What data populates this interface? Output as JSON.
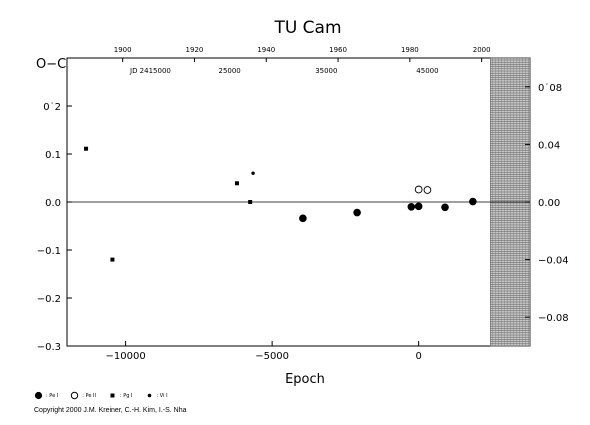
{
  "chart_data": {
    "type": "scatter",
    "title": "TU Cam",
    "ylabel": "O−C",
    "xlabel": "Epoch",
    "xlim": [
      -12000,
      3800
    ],
    "ylim": [
      -0.3,
      0.3
    ],
    "x_ticks": [
      -10000,
      -5000,
      0
    ],
    "x_tick_labels": [
      "−10000",
      "−5000",
      "0"
    ],
    "y_ticks": [
      -0.3,
      -0.2,
      -0.1,
      0.0,
      0.1,
      0.2
    ],
    "y_tick_labels": [
      "−0.3",
      "−0.2",
      "−0.1",
      "0.0",
      "0.1",
      "0˙2"
    ],
    "right_ticks": [
      -0.08,
      -0.04,
      0.0,
      0.04,
      0.08
    ],
    "right_tick_labels": [
      "−0.08",
      "−0.04",
      "0.00",
      "0.04",
      "0˙08"
    ],
    "year_ticks": [
      1900,
      1920,
      1940,
      1960,
      1980,
      2000
    ],
    "year_tick_epochs": [
      -10100,
      -7650,
      -5200,
      -2750,
      -300,
      2150
    ],
    "jd_label": "JD 2415000",
    "jd_ticks": [
      "25000",
      "35000",
      "45000"
    ],
    "jd_tick_epochs": [
      -6450,
      -3150,
      300
    ],
    "jd_label_epoch": -9850,
    "shaded_region": [
      2450,
      3800
    ],
    "series": [
      {
        "name": "Pe I",
        "marker": "filled-circle-large",
        "x": [
          -3950,
          -2100,
          -250,
          0,
          900,
          1850
        ],
        "y": [
          -0.034,
          -0.022,
          -0.01,
          -0.009,
          -0.011,
          0.001
        ]
      },
      {
        "name": "Pe II",
        "marker": "open-circle",
        "x": [
          0,
          300
        ],
        "y": [
          0.026,
          0.025
        ]
      },
      {
        "name": "Pg I",
        "marker": "filled-square",
        "x": [
          -11350,
          -10450,
          -6200,
          -5750
        ],
        "y": [
          0.111,
          -0.12,
          0.039,
          0.0
        ]
      },
      {
        "name": "Vi I",
        "marker": "filled-circle-small",
        "x": [
          -5650
        ],
        "y": [
          0.06
        ]
      }
    ]
  },
  "legend": [
    {
      "label": ": Pe I",
      "marker": "filled-circle-large"
    },
    {
      "label": ": Pe II",
      "marker": "open-circle"
    },
    {
      "label": ": Pg I",
      "marker": "filled-square"
    },
    {
      "label": ": Vi I",
      "marker": "filled-circle-small"
    }
  ],
  "copyright": "Copyright 2000 J.M. Kreiner, C.-H. Kim, I.-S. Nha"
}
